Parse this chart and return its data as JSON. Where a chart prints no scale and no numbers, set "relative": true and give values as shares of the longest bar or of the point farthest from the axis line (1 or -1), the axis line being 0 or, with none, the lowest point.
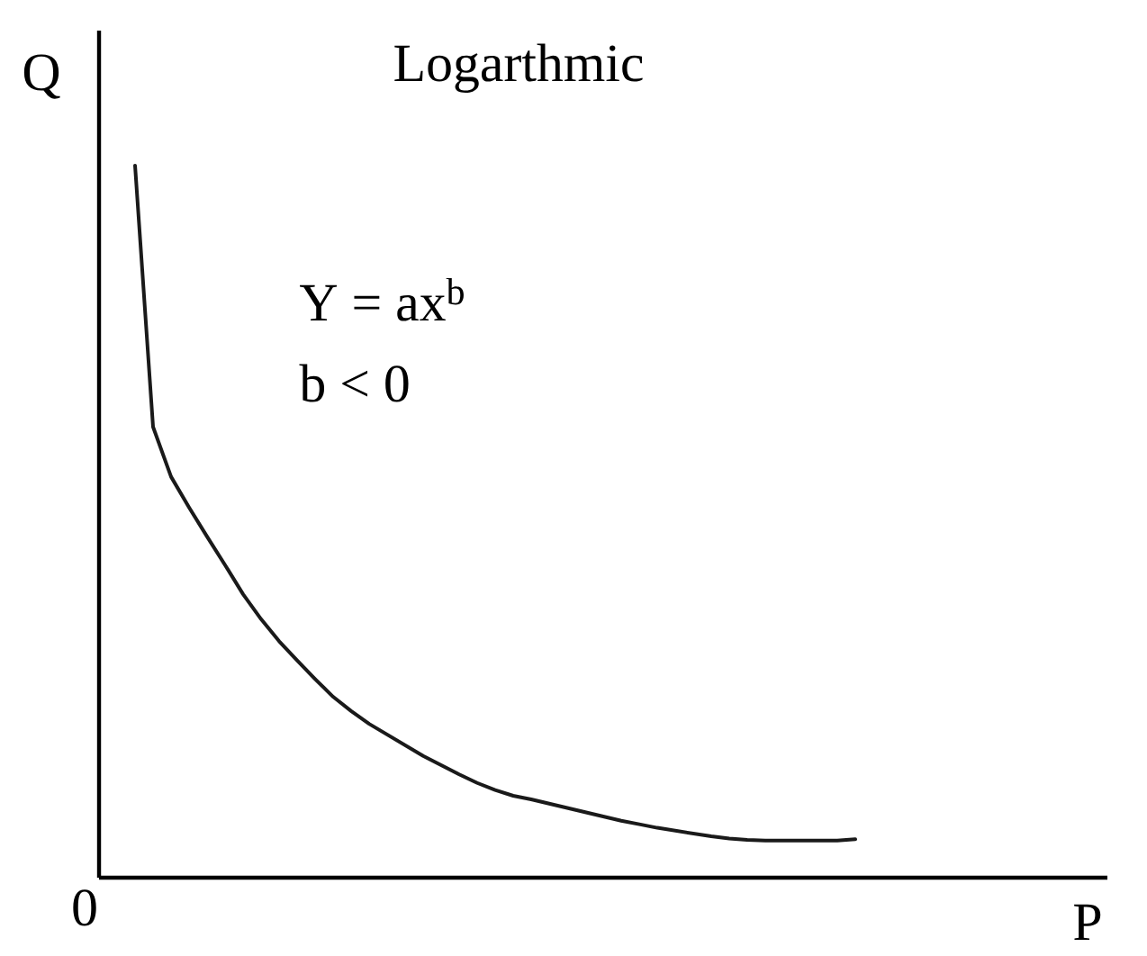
{
  "chart_data": {
    "type": "line",
    "title": "Logarthmic",
    "xlabel": "P",
    "ylabel": "Q",
    "categories": [
      null,
      null,
      null,
      null,
      null,
      null,
      null,
      null,
      null,
      null,
      null,
      null,
      null,
      null,
      null,
      null,
      null,
      null,
      null,
      null,
      null,
      null,
      null,
      null,
      null,
      null,
      null,
      null,
      null,
      null,
      null,
      null,
      null,
      null,
      null,
      null,
      null,
      null,
      null,
      null,
      null,
      null,
      null,
      null,
      null,
      null,
      null,
      null,
      null,
      null,
      null,
      null,
      null,
      null,
      null,
      null,
      null
    ],
    "values": [
      null,
      null,
      1,
      0.633,
      0.563,
      0.52,
      0.479,
      0.439,
      0.398,
      0.363,
      0.332,
      0.305,
      0.279,
      0.254,
      0.234,
      0.216,
      0.201,
      0.186,
      0.171,
      0.158,
      0.145,
      0.133,
      0.123,
      0.115,
      0.11,
      0.104,
      0.098,
      0.092,
      0.086,
      0.08,
      0.075,
      0.07,
      0.066,
      0.062,
      0.058,
      0.055,
      0.053,
      0.052,
      0.052,
      0.052,
      0.052,
      0.052,
      0.054,
      null,
      null,
      null,
      null,
      null,
      null,
      null,
      null,
      null,
      null,
      null,
      null,
      null,
      null
    ],
    "color": "#1a1a1a",
    "relative": true,
    "annotations": [
      "Y = ax$^{b}$",
      "b < 0",
      "0"
    ]
  }
}
